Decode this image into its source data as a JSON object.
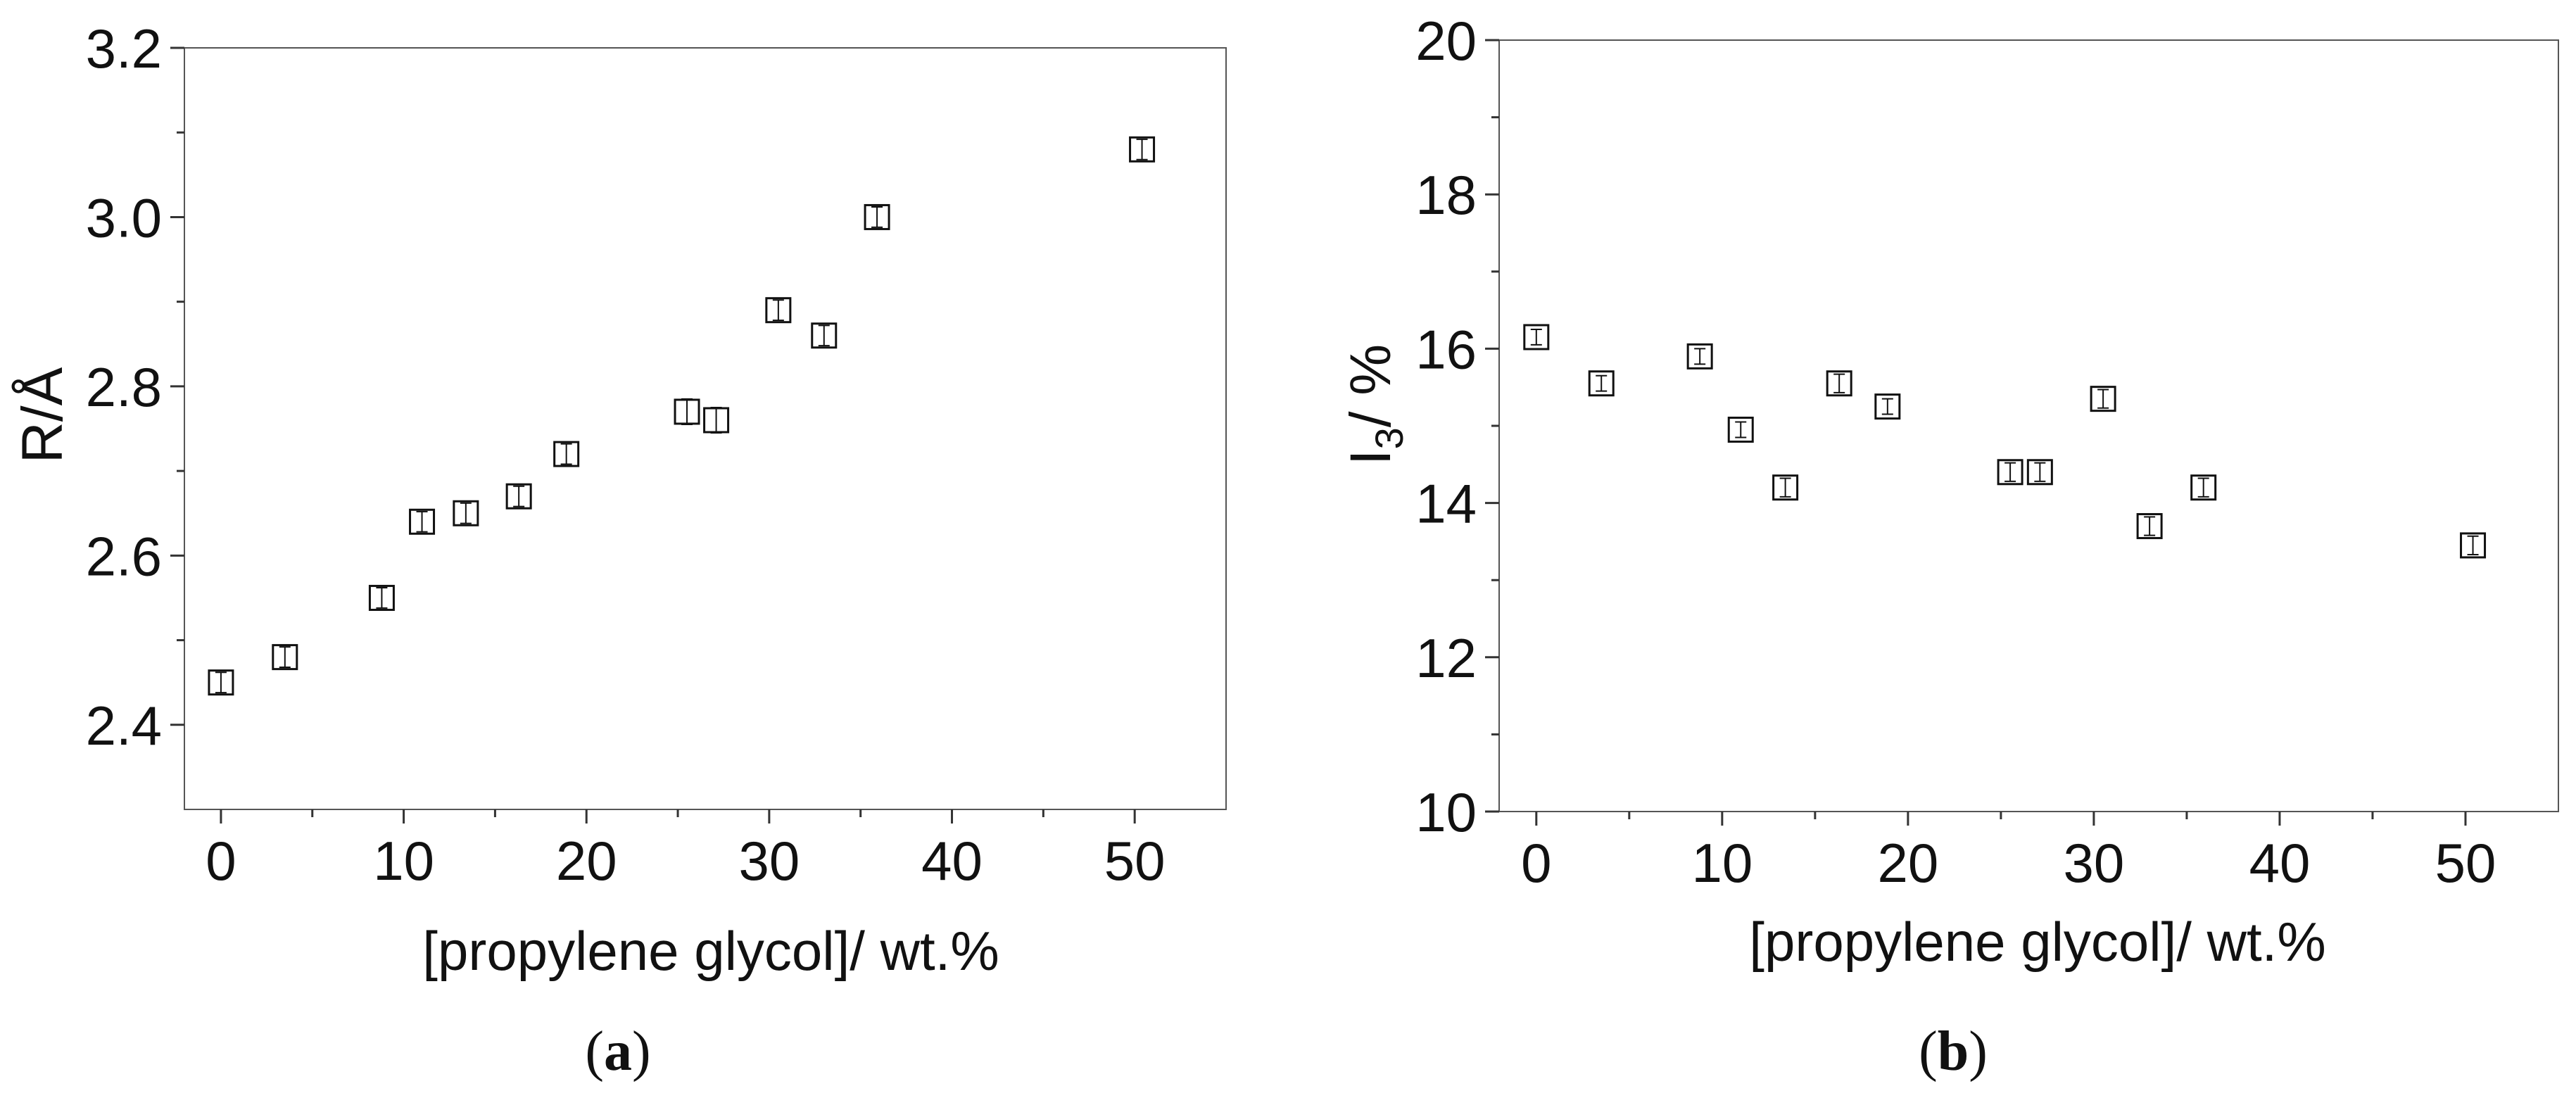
{
  "chart_data": [
    {
      "type": "scatter",
      "panel_label": "a",
      "xlabel": "[propylene glycol]/ wt.%",
      "ylabel": "R/Å",
      "xlim": [
        -2,
        55
      ],
      "ylim": [
        2.3,
        3.2
      ],
      "x_ticks": [
        0,
        10,
        20,
        30,
        40,
        50
      ],
      "y_ticks": [
        2.4,
        2.6,
        2.8,
        3.0,
        3.2
      ],
      "x_tick_labels": [
        "0",
        "10",
        "20",
        "30",
        "40",
        "50"
      ],
      "y_tick_labels": [
        "2.4",
        "2.6",
        "2.8",
        "3.0",
        "3.2"
      ],
      "marker": "open-square",
      "grid": false,
      "points": [
        {
          "x": 0,
          "y": 2.45,
          "err": 0.012
        },
        {
          "x": 3.5,
          "y": 2.48,
          "err": 0.012
        },
        {
          "x": 8.8,
          "y": 2.55,
          "err": 0.012
        },
        {
          "x": 11,
          "y": 2.64,
          "err": 0.012
        },
        {
          "x": 13.4,
          "y": 2.65,
          "err": 0.012
        },
        {
          "x": 16.3,
          "y": 2.67,
          "err": 0.012
        },
        {
          "x": 18.9,
          "y": 2.72,
          "err": 0.012
        },
        {
          "x": 25.5,
          "y": 2.77,
          "err": 0.015
        },
        {
          "x": 27.1,
          "y": 2.76,
          "err": 0.015
        },
        {
          "x": 30.5,
          "y": 2.89,
          "err": 0.012
        },
        {
          "x": 33,
          "y": 2.86,
          "err": 0.012
        },
        {
          "x": 35.9,
          "y": 3.0,
          "err": 0.012
        },
        {
          "x": 50.4,
          "y": 3.08,
          "err": 0.012
        }
      ]
    },
    {
      "type": "scatter",
      "panel_label": "b",
      "xlabel": "[propylene glycol]/ wt.%",
      "ylabel_main": "I",
      "ylabel_sub": "3",
      "ylabel_rest": "/ %",
      "xlim": [
        -2,
        55
      ],
      "ylim": [
        10,
        20
      ],
      "x_ticks": [
        0,
        10,
        20,
        30,
        40,
        50
      ],
      "y_ticks": [
        10,
        12,
        14,
        16,
        18,
        20
      ],
      "x_tick_labels": [
        "0",
        "10",
        "20",
        "30",
        "40",
        "50"
      ],
      "y_tick_labels": [
        "10",
        "12",
        "14",
        "16",
        "18",
        "20"
      ],
      "marker": "open-square",
      "grid": false,
      "points": [
        {
          "x": 0,
          "y": 16.15,
          "err": 0.1
        },
        {
          "x": 3.5,
          "y": 15.55,
          "err": 0.1
        },
        {
          "x": 8.8,
          "y": 15.9,
          "err": 0.1
        },
        {
          "x": 11,
          "y": 14.95,
          "err": 0.1
        },
        {
          "x": 13.4,
          "y": 14.2,
          "err": 0.12
        },
        {
          "x": 16.3,
          "y": 15.55,
          "err": 0.12
        },
        {
          "x": 18.9,
          "y": 15.25,
          "err": 0.1
        },
        {
          "x": 25.5,
          "y": 14.4,
          "err": 0.12
        },
        {
          "x": 27.1,
          "y": 14.4,
          "err": 0.12
        },
        {
          "x": 30.5,
          "y": 15.35,
          "err": 0.12
        },
        {
          "x": 33,
          "y": 13.7,
          "err": 0.12
        },
        {
          "x": 35.9,
          "y": 14.2,
          "err": 0.12
        },
        {
          "x": 50.4,
          "y": 13.45,
          "err": 0.12
        }
      ]
    }
  ]
}
